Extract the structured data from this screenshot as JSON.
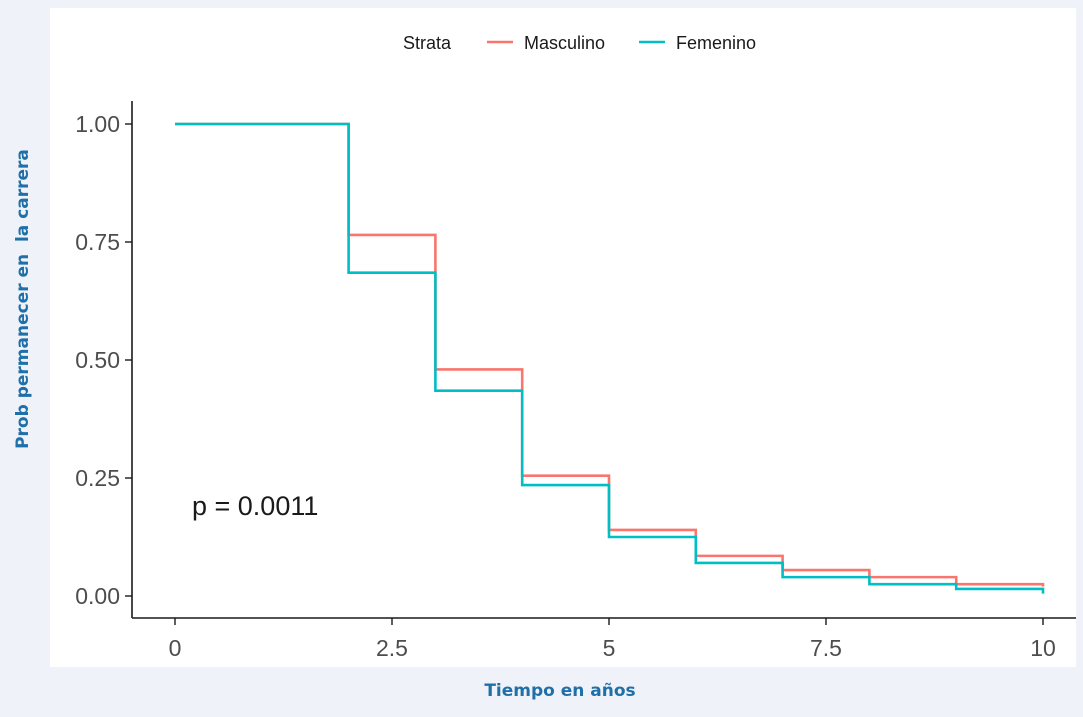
{
  "chart_data": {
    "type": "line",
    "step": true,
    "xlabel": "Tiempo en años",
    "ylabel": "Prob permanecer en  la carrera",
    "xlim": [
      0,
      10
    ],
    "ylim": [
      0,
      1
    ],
    "x_ticks": [
      "0",
      "2.5",
      "5",
      "7.5",
      "10"
    ],
    "x_tick_values": [
      0,
      2.5,
      5,
      7.5,
      10
    ],
    "y_ticks": [
      "0.00",
      "0.25",
      "0.50",
      "0.75",
      "1.00"
    ],
    "y_tick_values": [
      0,
      0.25,
      0.5,
      0.75,
      1.0
    ],
    "grid": false,
    "legend": {
      "title": "Strata",
      "position": "top"
    },
    "annotation": "p = 0.0011",
    "series": [
      {
        "name": "Masculino",
        "color": "#f8766d",
        "x": [
          0,
          2,
          3,
          4,
          5,
          6,
          7,
          8,
          9,
          10
        ],
        "y": [
          1.0,
          0.765,
          0.48,
          0.255,
          0.14,
          0.085,
          0.055,
          0.04,
          0.025,
          0.02
        ]
      },
      {
        "name": "Femenino",
        "color": "#00bfc4",
        "x": [
          0,
          2,
          3,
          4,
          5,
          6,
          7,
          8,
          9,
          10
        ],
        "y": [
          1.0,
          0.685,
          0.435,
          0.235,
          0.125,
          0.07,
          0.04,
          0.025,
          0.015,
          0.005
        ]
      }
    ]
  }
}
